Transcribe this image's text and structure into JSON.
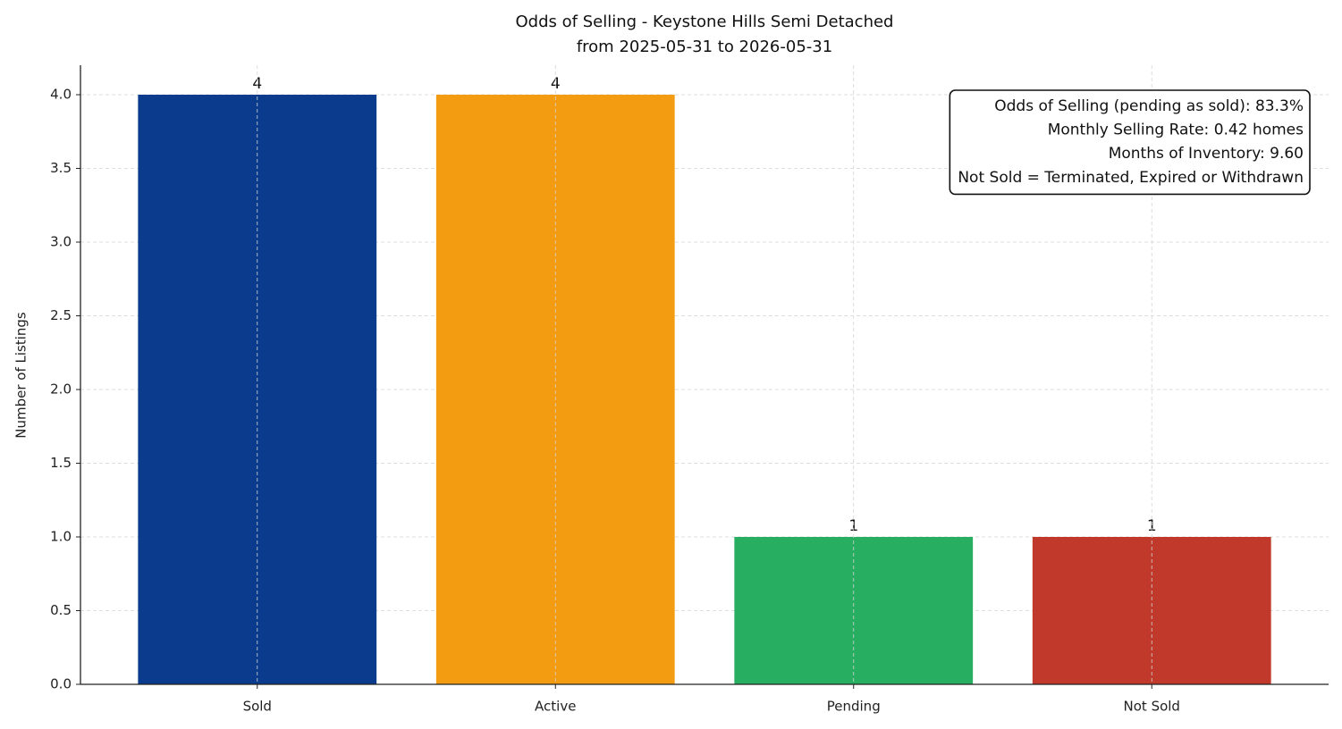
{
  "chart_data": {
    "type": "bar",
    "title": "Odds of Selling - Keystone Hills Semi Detached",
    "subtitle": "from 2025-05-31 to 2026-05-31",
    "y_label": "Number of Listings",
    "categories": [
      "Sold",
      "Active",
      "Pending",
      "Not Sold"
    ],
    "values": [
      4,
      4,
      1,
      1
    ],
    "colors": [
      "#0b3b8c",
      "#f39c12",
      "#27ae60",
      "#c0392b"
    ],
    "ylim": [
      0,
      4.2
    ],
    "yticks": [
      {
        "value": 0,
        "label": "0.0"
      },
      0.5,
      {
        "value": 1,
        "label": "1.0"
      },
      1.5,
      {
        "value": 2,
        "label": "2.0"
      },
      2.5,
      {
        "value": 3,
        "label": "3.0"
      },
      3.5,
      {
        "value": 4,
        "label": "4.0"
      }
    ],
    "grid": true,
    "annotation": [
      "Odds of Selling (pending as sold): 83.3%",
      "Monthly Selling Rate: 0.42 homes",
      "Months of Inventory: 9.60",
      "Not Sold = Terminated, Expired or Withdrawn"
    ],
    "annotation_position": "upper right"
  }
}
